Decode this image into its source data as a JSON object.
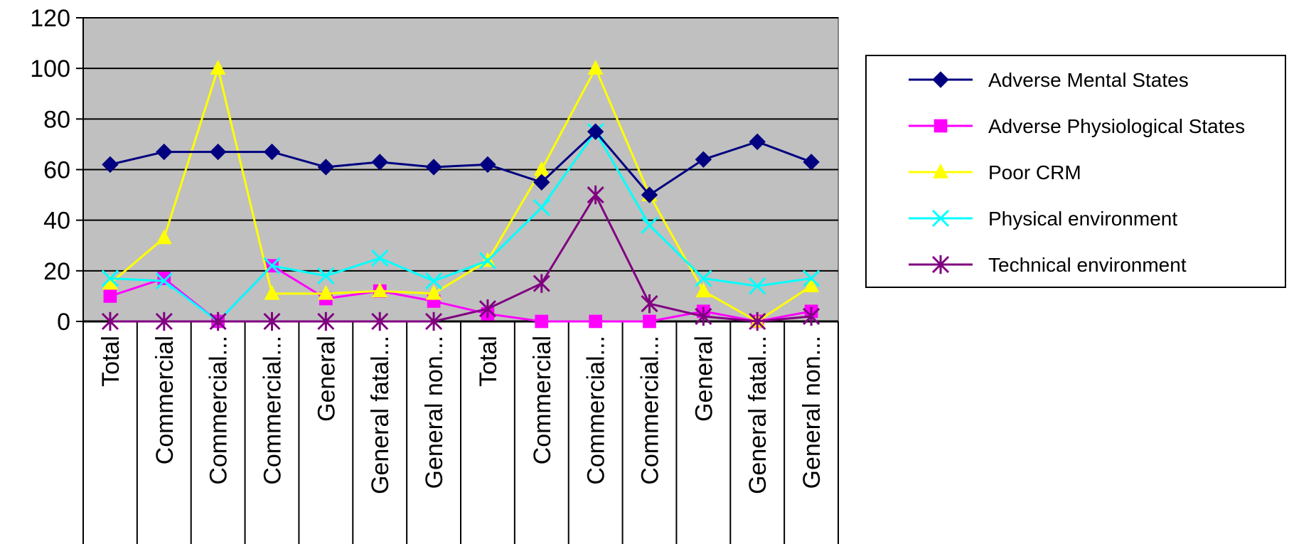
{
  "chart_data": {
    "type": "line",
    "title": "",
    "xlabel": "",
    "ylabel": "",
    "ylim": [
      0,
      120
    ],
    "yticks": [
      0,
      20,
      40,
      60,
      80,
      100,
      120
    ],
    "grid": true,
    "legend_position": "right",
    "plot_background": "#c0c0c0",
    "categories": [
      "Total",
      "Commercial",
      "Commercial...",
      "Commercial...",
      "General",
      "General fatal...",
      "General non...",
      "Total",
      "Commercial",
      "Commercial...",
      "Commercial...",
      "General",
      "General fatal...",
      "General non..."
    ],
    "series": [
      {
        "name": "Adverse Mental States",
        "color": "#000080",
        "marker": "diamond",
        "values": [
          62,
          67,
          67,
          67,
          61,
          63,
          61,
          62,
          55,
          75,
          50,
          64,
          71,
          63
        ]
      },
      {
        "name": "Adverse Physiological States",
        "color": "#ff00ff",
        "marker": "square",
        "values": [
          10,
          17,
          0,
          22,
          9,
          12,
          8,
          3,
          0,
          0,
          0,
          4,
          0,
          4
        ]
      },
      {
        "name": "Poor CRM",
        "color": "#ffff00",
        "marker": "triangle",
        "values": [
          15,
          33,
          100,
          11,
          11,
          12,
          11,
          24,
          60,
          100,
          50,
          12,
          0,
          14
        ]
      },
      {
        "name": "Physical environment",
        "color": "#00ffff",
        "marker": "x",
        "values": [
          17,
          16,
          0,
          22,
          18,
          25,
          16,
          24,
          45,
          75,
          38,
          17,
          14,
          17
        ]
      },
      {
        "name": "Technical environment",
        "color": "#800080",
        "marker": "star",
        "values": [
          0,
          0,
          0,
          0,
          0,
          0,
          0,
          5,
          15,
          50,
          7,
          2,
          0,
          2
        ]
      }
    ]
  }
}
